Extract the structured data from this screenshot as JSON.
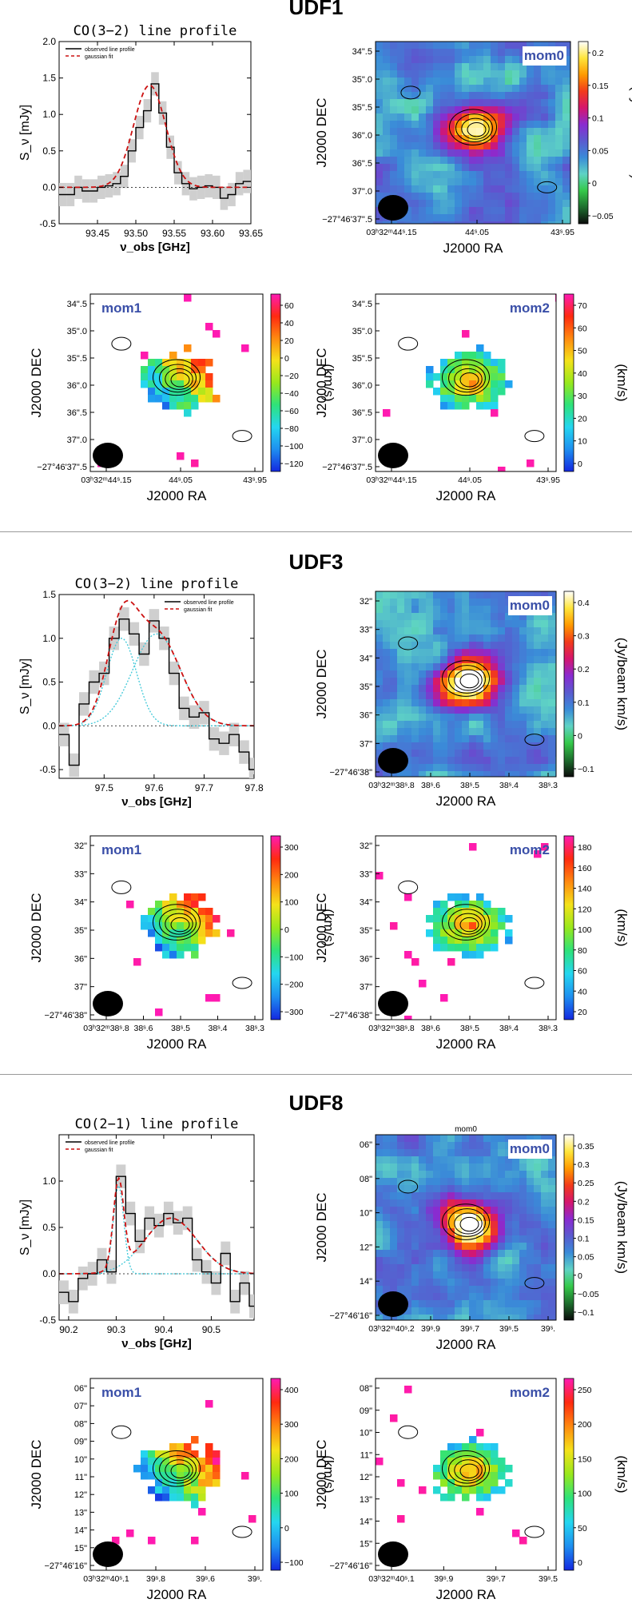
{
  "figure": {
    "colors": {
      "bg": "#ffffff",
      "divider": "#999999",
      "label_blue": "#3a4fa8",
      "profile_observed": "#000000",
      "profile_fit": "#cc1111",
      "profile_component": "#3ec8d8",
      "error_band": "#cfcfcf",
      "beam": "#000000"
    },
    "colormaps": {
      "mom0": [
        "#0b0b0b",
        "#1e6f2e",
        "#35c94a",
        "#5fd3c5",
        "#3a8bd8",
        "#5a5acf",
        "#8a2bd0",
        "#d5166e",
        "#f23b1b",
        "#ff9a00",
        "#ffe53a",
        "#ffffff"
      ],
      "velocity": [
        "#1428e0",
        "#1e8ff0",
        "#24d6f0",
        "#2ee27a",
        "#98e81c",
        "#f4e21a",
        "#ff8a10",
        "#ff2a10",
        "#ff1ab4"
      ]
    },
    "sections": [
      {
        "title": "UDF1",
        "panels": [
          {
            "kind": "spectrum",
            "title": "CO(3−2) line profile",
            "legend": [
              "observed line profile",
              "gaussian fit"
            ],
            "ylabel": "S_ν [mJy]",
            "xlabel": "ν_obs [GHz]",
            "chart_data": {
              "type": "line",
              "xlim": [
                93.4,
                93.65
              ],
              "ylim": [
                -0.5,
                2.0
              ],
              "xticks": [
                "93.45",
                "93.50",
                "93.55",
                "93.60",
                "93.65"
              ],
              "yticks": [
                "-0.5",
                "0.0",
                "0.5",
                "1.0",
                "1.5",
                "2.0"
              ],
              "observed": {
                "edges": [
                  93.4,
                  93.41,
                  93.42,
                  93.43,
                  93.44,
                  93.45,
                  93.46,
                  93.47,
                  93.48,
                  93.49,
                  93.5,
                  93.51,
                  93.52,
                  93.53,
                  93.54,
                  93.55,
                  93.56,
                  93.57,
                  93.58,
                  93.59,
                  93.6,
                  93.61,
                  93.62,
                  93.63,
                  93.64,
                  93.65
                ],
                "values": [
                  -0.1,
                  -0.1,
                  0.0,
                  -0.05,
                  -0.05,
                  0.0,
                  0.02,
                  0.05,
                  0.15,
                  0.5,
                  0.82,
                  1.05,
                  1.42,
                  1.02,
                  0.55,
                  0.2,
                  0.05,
                  -0.02,
                  0.0,
                  0.02,
                  0.0,
                  -0.15,
                  -0.1,
                  0.05,
                  0.08
                ]
              },
              "fit": {
                "amp": 1.4,
                "center": 93.518,
                "sigma": 0.021,
                "offset": 0.0
              }
            }
          },
          {
            "kind": "map",
            "label": "mom0",
            "ylabel": "J2000  DEC",
            "xlabel": "J2000  RA",
            "yticks": [
              "34\".5",
              "35\".0",
              "35\".5",
              "36\".0",
              "36\".5",
              "37\".0",
              "−27°46'37\".5"
            ],
            "xticks": [
              "03ʰ32ᵐ44ˢ.15",
              "44ˢ.05",
              "43ˢ.95"
            ],
            "colorbar": {
              "map": "mom0",
              "ticks": [
                "0.2",
                "0.15",
                "0.1",
                "0.05",
                "0",
                "−0.05"
              ],
              "label": "(Jy/beam  km/s)"
            }
          },
          {
            "kind": "map",
            "label": "mom1",
            "ylabel": "J2000  DEC",
            "xlabel": "J2000  RA",
            "yticks": [
              "34\".5",
              "35\".0",
              "35\".5",
              "36\".0",
              "36\".5",
              "37\".0",
              "−27°46'37\".5"
            ],
            "xticks": [
              "03ʰ32ᵐ44ˢ.15",
              "44ˢ.05",
              "43ˢ.95"
            ],
            "colorbar": {
              "map": "velocity",
              "ticks": [
                "60",
                "40",
                "20",
                "0",
                "−20",
                "−40",
                "−60",
                "−80",
                "−100",
                "−120"
              ],
              "label": "(km/s)"
            }
          },
          {
            "kind": "map",
            "label": "mom2",
            "ylabel": "J2000  DEC",
            "xlabel": "J2000  RA",
            "yticks": [
              "34\".5",
              "35\".0",
              "35\".5",
              "36\".0",
              "36\".5",
              "37\".0",
              "−27°46'37\".5"
            ],
            "xticks": [
              "03ʰ32ᵐ44ˢ.15",
              "44ˢ.05",
              "43ˢ.95"
            ],
            "colorbar": {
              "map": "velocity",
              "ticks": [
                "70",
                "60",
                "50",
                "40",
                "30",
                "20",
                "10",
                "0"
              ],
              "label": "(km/s)"
            }
          }
        ]
      },
      {
        "title": "UDF3",
        "panels": [
          {
            "kind": "spectrum",
            "title": "CO(3−2) line profile",
            "legend": [
              "observed line profile",
              "gaussian fit"
            ],
            "ylabel": "S_ν [mJy]",
            "xlabel": "ν_obs [GHz]",
            "chart_data": {
              "type": "line",
              "xlim": [
                97.41,
                97.8
              ],
              "ylim": [
                -0.6,
                1.5
              ],
              "xticks": [
                "97.5",
                "97.6",
                "97.7",
                "97.8"
              ],
              "yticks": [
                "-0.5",
                "0.0",
                "0.5",
                "1.0",
                "1.5"
              ],
              "observed": {
                "edges": [
                  97.41,
                  97.43,
                  97.45,
                  97.47,
                  97.49,
                  97.51,
                  97.53,
                  97.55,
                  97.57,
                  97.59,
                  97.61,
                  97.63,
                  97.65,
                  97.67,
                  97.69,
                  97.71,
                  97.73,
                  97.75,
                  97.77,
                  97.79,
                  97.8
                ],
                "values": [
                  -0.1,
                  -0.45,
                  0.25,
                  0.5,
                  0.6,
                  1.0,
                  1.22,
                  1.05,
                  0.82,
                  1.2,
                  1.0,
                  0.6,
                  0.2,
                  0.1,
                  0.15,
                  -0.15,
                  -0.2,
                  -0.1,
                  -0.3,
                  -0.5
                ]
              },
              "fit": {
                "components": [
                  {
                    "amp": 1.0,
                    "center": 97.535,
                    "sigma": 0.03
                  },
                  {
                    "amp": 1.05,
                    "center": 97.605,
                    "sigma": 0.048
                  }
                ]
              }
            }
          },
          {
            "kind": "map",
            "label": "mom0",
            "ylabel": "J2000  DEC",
            "xlabel": "J2000  RA",
            "yticks": [
              "32\"",
              "33\"",
              "34\"",
              "35\"",
              "36\"",
              "37\"",
              "−27°46'38\""
            ],
            "xticks": [
              "03ʰ32ᵐ38ˢ.8",
              "38ˢ.6",
              "38ˢ.5",
              "38ˢ.4",
              "38ˢ.3"
            ],
            "colorbar": {
              "map": "mom0",
              "ticks": [
                "0.4",
                "0.3",
                "0.2",
                "0.1",
                "0",
                "−0.1"
              ],
              "label": "(Jy/beam  km/s)"
            }
          },
          {
            "kind": "map",
            "label": "mom1",
            "ylabel": "J2000  DEC",
            "xlabel": "J2000  RA",
            "yticks": [
              "32\"",
              "33\"",
              "34\"",
              "35\"",
              "36\"",
              "37\"",
              "−27°46'38\""
            ],
            "xticks": [
              "03ʰ32ᵐ38ˢ.8",
              "38ˢ.6",
              "38ˢ.5",
              "38ˢ.4",
              "38ˢ.3"
            ],
            "colorbar": {
              "map": "velocity",
              "ticks": [
                "300",
                "200",
                "100",
                "0",
                "−100",
                "−200",
                "−300"
              ],
              "label": "(km/s)"
            }
          },
          {
            "kind": "map",
            "label": "mom2",
            "ylabel": "J2000  DEC",
            "xlabel": "J2000  RA",
            "yticks": [
              "32\"",
              "33\"",
              "34\"",
              "35\"",
              "36\"",
              "37\"",
              "−27°46'38\""
            ],
            "xticks": [
              "03ʰ32ᵐ38ˢ.8",
              "38ˢ.6",
              "38ˢ.5",
              "38ˢ.4",
              "38ˢ.3"
            ],
            "colorbar": {
              "map": "velocity",
              "ticks": [
                "180",
                "160",
                "140",
                "120",
                "100",
                "80",
                "60",
                "40",
                "20"
              ],
              "label": "(km/s)"
            }
          }
        ]
      },
      {
        "title": "UDF8",
        "panels": [
          {
            "kind": "spectrum",
            "title": "CO(2−1) line profile",
            "legend": [
              "observed line profile",
              "gaussian fit"
            ],
            "ylabel": "S_ν [mJy]",
            "xlabel": "ν_obs [GHz]",
            "chart_data": {
              "type": "line",
              "xlim": [
                90.18,
                90.59
              ],
              "ylim": [
                -0.5,
                1.5
              ],
              "xticks": [
                "90.2",
                "90.3",
                "90.4",
                "90.5"
              ],
              "yticks": [
                "-0.5",
                "0.0",
                "0.5",
                "1.0"
              ],
              "observed": {
                "edges": [
                  90.18,
                  90.2,
                  90.22,
                  90.24,
                  90.26,
                  90.28,
                  90.3,
                  90.32,
                  90.34,
                  90.36,
                  90.38,
                  90.4,
                  90.42,
                  90.44,
                  90.46,
                  90.48,
                  90.5,
                  90.52,
                  90.54,
                  90.56,
                  90.58,
                  90.59
                ],
                "values": [
                  -0.2,
                  -0.3,
                  -0.05,
                  0.0,
                  0.15,
                  0.02,
                  1.05,
                  0.65,
                  0.35,
                  0.6,
                  0.52,
                  0.65,
                  0.55,
                  0.6,
                  0.15,
                  0.02,
                  -0.1,
                  0.22,
                  -0.3,
                  -0.1,
                  -0.35
                ]
              },
              "fit": {
                "components": [
                  {
                    "amp": 0.95,
                    "center": 90.305,
                    "sigma": 0.011
                  },
                  {
                    "amp": 0.6,
                    "center": 90.415,
                    "sigma": 0.055
                  }
                ]
              }
            }
          },
          {
            "kind": "map",
            "label": "mom0",
            "toptitle": "mom0",
            "ylabel": "J2000  DEC",
            "xlabel": "J2000  RA",
            "yticks": [
              "06\"",
              "08\"",
              "10\"",
              "12\"",
              "14\"",
              "−27°46'16\""
            ],
            "xticks": [
              "03ʰ32ᵐ40ˢ.2",
              "39ˢ.9",
              "39ˢ.7",
              "39ˢ.5",
              "39ˢ."
            ],
            "colorbar": {
              "map": "mom0",
              "ticks": [
                "0.35",
                "0.3",
                "0.25",
                "0.2",
                "0.15",
                "0.1",
                "0.05",
                "0",
                "−0.05",
                "−0.1"
              ],
              "label": "(Jy/beam  km/s)"
            }
          },
          {
            "kind": "map",
            "label": "mom1",
            "ylabel": "J2000  DEC",
            "xlabel": "J2000  RA",
            "yticks": [
              "06\"",
              "07\"",
              "08\"",
              "09\"",
              "10\"",
              "11\"",
              "12\"",
              "13\"",
              "14\"",
              "15\"",
              "−27°46'16\""
            ],
            "xticks": [
              "03ʰ32ᵐ40ˢ.1",
              "39ˢ.8",
              "39ˢ.6",
              "39ˢ."
            ],
            "colorbar": {
              "map": "velocity",
              "ticks": [
                "400",
                "300",
                "200",
                "100",
                "0",
                "−100"
              ],
              "label": "(km/s)"
            }
          },
          {
            "kind": "map",
            "label": "mom2",
            "ylabel": "J2000  DEC",
            "xlabel": "J2000  RA",
            "yticks": [
              "08\"",
              "09\"",
              "10\"",
              "11\"",
              "12\"",
              "13\"",
              "14\"",
              "15\"",
              "−27°46'16\""
            ],
            "xticks": [
              "03ʰ32ᵐ40ˢ.1",
              "39ˢ.9",
              "39ˢ.7",
              "39ˢ.5"
            ],
            "colorbar": {
              "map": "velocity",
              "ticks": [
                "250",
                "200",
                "150",
                "100",
                "50",
                "0"
              ],
              "label": "(km/s)"
            }
          }
        ]
      }
    ]
  }
}
